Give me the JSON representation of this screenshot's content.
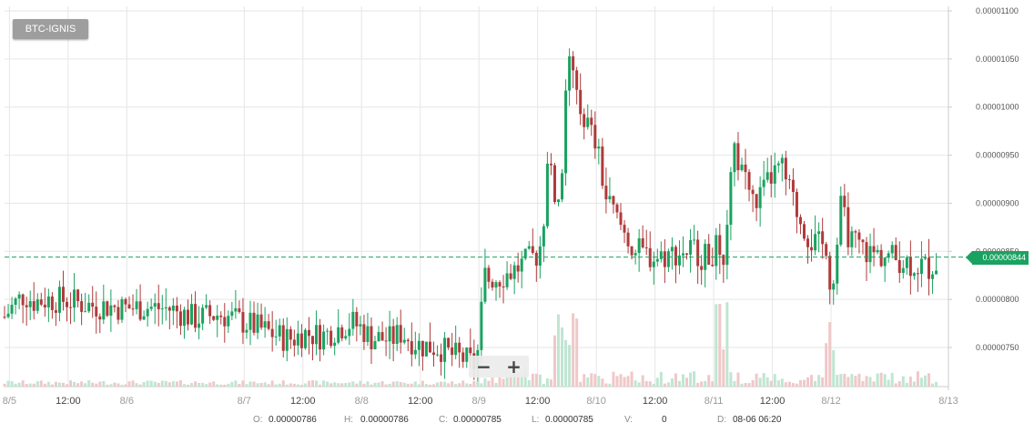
{
  "pair_label": "BTC-IGNIS",
  "zoom": {
    "out_symbol": "−",
    "in_symbol": "+"
  },
  "ohlc": {
    "o_label": "O:",
    "o_value": "0.00000786",
    "h_label": "H:",
    "h_value": "0.00000786",
    "c_label": "C:",
    "c_value": "0.00000785",
    "l_label": "L:",
    "l_value": "0.00000785",
    "v_label": "V:",
    "v_value": "0",
    "d_label": "D:",
    "d_value": "08-06 06:20"
  },
  "last_price_label": "0.00000844",
  "colors": {
    "up": "#1aa260",
    "down": "#b03a3a",
    "up_volume": "#bfe6d2",
    "down_volume": "#f0c8c8",
    "last_line": "#1aa260",
    "grid": "#e6e6e6"
  },
  "chart_data": {
    "type": "candlestick",
    "title": "BTC-IGNIS",
    "x_ticks": [
      "8/5",
      "12:00",
      "8/6",
      "8/7",
      "12:00",
      "8/8",
      "12:00",
      "8/9",
      "12:00",
      "8/10",
      "12:00",
      "8/11",
      "12:00",
      "8/12",
      "8/13"
    ],
    "x_tick_hours": [
      0,
      12,
      24,
      48,
      60,
      72,
      84,
      96,
      108,
      120,
      132,
      144,
      156,
      168,
      192
    ],
    "x_range_hours": [
      -1,
      192
    ],
    "y_ticks": [
      "0.00001100",
      "0.00001050",
      "0.00001000",
      "0.00000950",
      "0.00000900",
      "0.00000850",
      "0.00000800",
      "0.00000750"
    ],
    "y_tick_values": [
      1.1e-05,
      1.05e-05,
      1e-05,
      9.5e-06,
      9e-06,
      8.5e-06,
      8e-06,
      7.5e-06
    ],
    "ylim": [
      7.1e-06,
      1.1e-05
    ],
    "last_price": 8.44e-06,
    "series_hours": [
      -1,
      1,
      3,
      5,
      8,
      12,
      16,
      20,
      24,
      28,
      33,
      38,
      43,
      48,
      52,
      56,
      58,
      60,
      64,
      68,
      70,
      72,
      74,
      78,
      80,
      84,
      88,
      90,
      93,
      95,
      96,
      97,
      98,
      100,
      103,
      106,
      108,
      109,
      110,
      111,
      112,
      113,
      114,
      115,
      116,
      118,
      120,
      122,
      124,
      128,
      132,
      136,
      140,
      142,
      144,
      145,
      146,
      147,
      148,
      150,
      152,
      154,
      156,
      158,
      160,
      162,
      164,
      166,
      167,
      168,
      169,
      170,
      172,
      176,
      180,
      184,
      188,
      190
    ],
    "series_close": [
      7.82e-06,
      7.95e-06,
      8.05e-06,
      7.98e-06,
      8e-06,
      7.99e-06,
      7.94e-06,
      7.93e-06,
      7.91e-06,
      7.92e-06,
      7.9e-06,
      7.8e-06,
      7.85e-06,
      7.76e-06,
      7.68e-06,
      7.6e-06,
      7.59e-06,
      7.65e-06,
      7.62e-06,
      7.72e-06,
      7.76e-06,
      7.7e-06,
      7.6e-06,
      7.58e-06,
      7.65e-06,
      7.52e-06,
      7.5e-06,
      7.43e-06,
      7.38e-06,
      7.32e-06,
      7.5e-06,
      8.25e-06,
      8.22e-06,
      8.23e-06,
      8.3e-06,
      8.4e-06,
      8.47e-06,
      8.65e-06,
      9.5e-06,
      9.2e-06,
      8.95e-06,
      9.2e-06,
      1.065e-05,
      1.04e-05,
      1.005e-05,
      9.85e-06,
      9.6e-06,
      9.05e-06,
      8.85e-06,
      8.5e-06,
      8.44e-06,
      8.48e-06,
      8.53e-06,
      8.43e-06,
      8.5e-06,
      8.55e-06,
      8.5e-06,
      9e-06,
      9.5e-06,
      9.4e-06,
      9e-06,
      9.1e-06,
      9.3e-06,
      9.35e-06,
      9.05e-06,
      8.8e-06,
      8.6e-06,
      8.55e-06,
      8.58e-06,
      8.1e-06,
      8.45e-06,
      8.95e-06,
      8.6e-06,
      8.48e-06,
      8.45e-06,
      8.38e-06,
      8.33e-06,
      8.4e-06
    ],
    "volume_spikes_hours": [
      112,
      113,
      114,
      115,
      145,
      146,
      168
    ]
  }
}
